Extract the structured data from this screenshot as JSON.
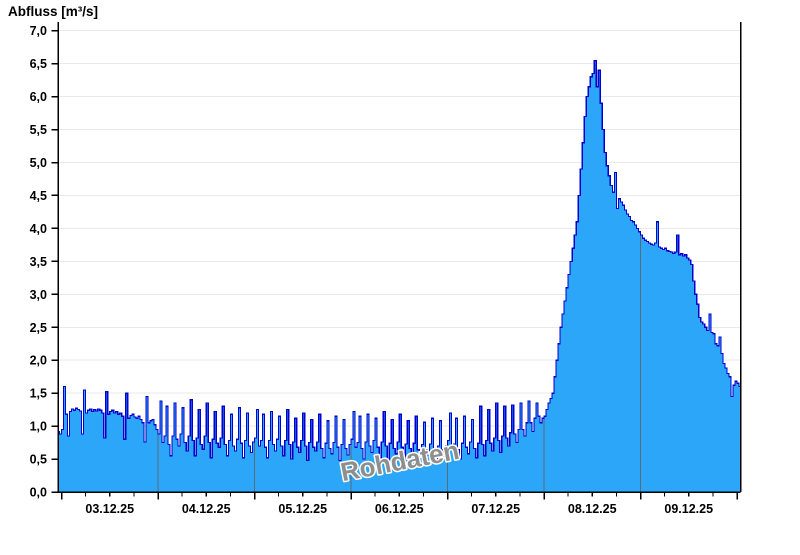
{
  "chart_data": {
    "type": "area",
    "title": "Abfluss [m³/s]",
    "ylabel": "Abfluss [m³/s]",
    "watermark": "Rohdaten",
    "ylim": [
      0.0,
      7.0
    ],
    "y_tick_step": 0.5,
    "y_tick_labels": [
      "0,0",
      "0,5",
      "1,0",
      "1,5",
      "2,0",
      "2,5",
      "3,0",
      "3,5",
      "4,0",
      "4,5",
      "5,0",
      "5,5",
      "6,0",
      "6,5",
      "7,0"
    ],
    "x_tick_labels": [
      "03.12.25",
      "04.12.25",
      "05.12.25",
      "06.12.25",
      "07.12.25",
      "08.12.25",
      "09.12.25"
    ],
    "x_start": "02.12.25 23:00",
    "x_end": "10.12.25 01:00",
    "x_step_minutes": 30,
    "grid": {
      "horizontal": "every 0.5 m³/s",
      "vertical": "at day boundaries (midnight), visible inside filled area",
      "minor_x_ticks_hours": 6
    },
    "legend": "none",
    "colors": {
      "fill": "#2BA6F8",
      "line": "#0000CE",
      "grid_h": "#E9E9E9",
      "grid_v": "#5A6B7A",
      "axis": "#000000",
      "label": "#000000",
      "watermark_fill": "#8E8E8E",
      "watermark_outline": "#FFFFFF",
      "background": "#FFFFFF"
    },
    "values": [
      0.92,
      0.88,
      0.95,
      1.6,
      1.18,
      0.85,
      1.22,
      1.26,
      1.24,
      1.27,
      1.25,
      1.23,
      0.88,
      1.55,
      1.2,
      1.24,
      1.26,
      1.22,
      1.25,
      1.23,
      1.26,
      1.24,
      1.2,
      0.82,
      1.52,
      1.18,
      1.22,
      1.24,
      1.2,
      1.22,
      1.18,
      1.2,
      1.15,
      0.8,
      1.5,
      1.12,
      1.16,
      1.18,
      1.14,
      1.12,
      1.15,
      1.1,
      1.05,
      0.76,
      1.45,
      1.05,
      1.08,
      1.1,
      1.02,
      0.95,
      0.88,
      1.38,
      0.75,
      0.85,
      1.3,
      0.72,
      0.55,
      0.85,
      1.35,
      0.8,
      0.7,
      0.88,
      1.28,
      0.75,
      0.62,
      0.85,
      1.4,
      0.78,
      0.55,
      0.82,
      1.25,
      0.72,
      0.65,
      0.85,
      1.35,
      0.75,
      0.52,
      0.8,
      1.22,
      0.74,
      0.68,
      0.82,
      1.3,
      0.72,
      0.55,
      0.78,
      1.18,
      0.7,
      0.62,
      0.8,
      1.28,
      0.74,
      0.52,
      0.78,
      1.2,
      0.7,
      0.6,
      0.76,
      0.82,
      1.25,
      0.7,
      0.78,
      1.18,
      0.68,
      0.52,
      0.78,
      1.22,
      0.72,
      0.62,
      0.8,
      1.15,
      0.7,
      0.55,
      0.78,
      1.25,
      0.72,
      0.5,
      0.76,
      1.12,
      0.68,
      0.6,
      0.78,
      1.2,
      0.7,
      0.48,
      0.75,
      1.1,
      0.68,
      0.62,
      0.76,
      1.18,
      0.66,
      0.52,
      0.74,
      1.08,
      0.66,
      0.58,
      0.75,
      1.15,
      0.68,
      0.48,
      0.72,
      1.1,
      0.66,
      0.56,
      0.72,
      0.8,
      1.22,
      0.68,
      0.75,
      1.15,
      0.66,
      0.5,
      0.76,
      1.18,
      0.7,
      0.6,
      0.78,
      1.12,
      0.68,
      0.52,
      0.76,
      1.22,
      0.7,
      0.48,
      0.74,
      1.1,
      0.66,
      0.58,
      0.76,
      1.18,
      0.68,
      0.46,
      0.73,
      1.08,
      0.66,
      0.6,
      0.74,
      1.15,
      0.64,
      0.5,
      0.72,
      1.06,
      0.64,
      0.56,
      0.73,
      1.12,
      0.66,
      0.46,
      0.7,
      1.08,
      0.64,
      0.54,
      0.7,
      0.78,
      1.2,
      0.66,
      0.73,
      1.12,
      0.64,
      0.5,
      0.74,
      1.15,
      0.68,
      0.58,
      0.76,
      1.1,
      0.66,
      0.52,
      0.74,
      1.3,
      0.72,
      0.55,
      0.78,
      1.25,
      0.74,
      0.62,
      0.82,
      1.35,
      0.78,
      0.6,
      0.85,
      1.3,
      0.82,
      0.7,
      0.9,
      1.32,
      0.88,
      0.75,
      0.95,
      1.35,
      0.95,
      0.85,
      1.05,
      1.38,
      1.05,
      0.92,
      1.12,
      1.35,
      1.15,
      1.05,
      1.12,
      1.15,
      1.25,
      1.35,
      1.42,
      1.5,
      1.75,
      2.0,
      2.25,
      2.5,
      2.7,
      2.9,
      3.1,
      3.3,
      3.5,
      3.7,
      3.9,
      4.1,
      4.5,
      4.9,
      5.3,
      5.7,
      6.0,
      6.15,
      6.3,
      6.35,
      6.55,
      6.15,
      6.4,
      5.9,
      5.5,
      5.15,
      4.95,
      4.8,
      4.65,
      4.55,
      4.85,
      4.3,
      4.45,
      4.4,
      4.35,
      4.28,
      4.22,
      4.18,
      4.12,
      4.1,
      4.05,
      4.0,
      3.95,
      3.9,
      3.85,
      3.82,
      3.8,
      3.78,
      3.76,
      3.75,
      3.78,
      4.1,
      3.72,
      3.7,
      3.68,
      3.7,
      3.66,
      3.65,
      3.64,
      3.62,
      3.64,
      3.9,
      3.6,
      3.62,
      3.58,
      3.6,
      3.55,
      3.52,
      3.45,
      3.2,
      3.0,
      2.85,
      2.65,
      2.58,
      2.55,
      2.5,
      2.45,
      2.7,
      2.42,
      2.4,
      2.25,
      2.22,
      2.35,
      2.1,
      1.95,
      1.88,
      1.8,
      1.75,
      1.45,
      1.62,
      1.68,
      1.65,
      1.6,
      1.62
    ]
  }
}
